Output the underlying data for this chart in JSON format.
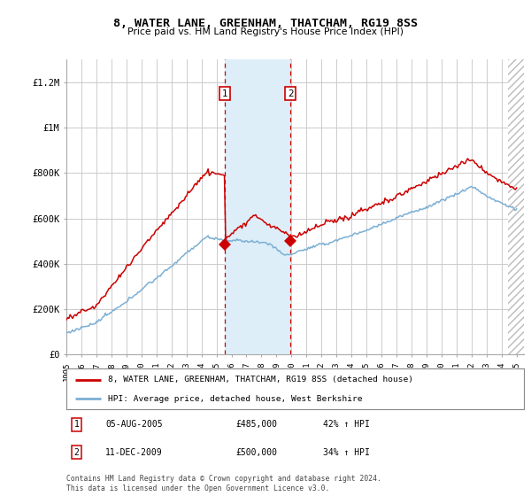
{
  "title": "8, WATER LANE, GREENHAM, THATCHAM, RG19 8SS",
  "subtitle": "Price paid vs. HM Land Registry's House Price Index (HPI)",
  "legend_line1": "8, WATER LANE, GREENHAM, THATCHAM, RG19 8SS (detached house)",
  "legend_line2": "HPI: Average price, detached house, West Berkshire",
  "footnote": "Contains HM Land Registry data © Crown copyright and database right 2024.\nThis data is licensed under the Open Government Licence v3.0.",
  "transaction1": {
    "label": "1",
    "date": "05-AUG-2005",
    "price": "£485,000",
    "hpi": "42% ↑ HPI"
  },
  "transaction2": {
    "label": "2",
    "date": "11-DEC-2009",
    "price": "£500,000",
    "hpi": "34% ↑ HPI"
  },
  "vline1_x": 2005.58,
  "vline2_x": 2009.94,
  "marker1_y": 485000,
  "marker2_y": 500000,
  "ylim": [
    0,
    1300000
  ],
  "xlim_start": 1995.0,
  "xlim_end": 2025.5,
  "yticks": [
    0,
    200000,
    400000,
    600000,
    800000,
    1000000,
    1200000
  ],
  "ytick_labels": [
    "£0",
    "£200K",
    "£400K",
    "£600K",
    "£800K",
    "£1M",
    "£1.2M"
  ],
  "xticks": [
    1995,
    1996,
    1997,
    1998,
    1999,
    2000,
    2001,
    2002,
    2003,
    2004,
    2005,
    2006,
    2007,
    2008,
    2009,
    2010,
    2011,
    2012,
    2013,
    2014,
    2015,
    2016,
    2017,
    2018,
    2019,
    2020,
    2021,
    2022,
    2023,
    2024,
    2025
  ],
  "hpi_color": "#7bafd4",
  "price_color": "#cc0000",
  "span_color": "#ddeef8",
  "bg_color": "#ffffff",
  "grid_color": "#cccccc",
  "hatch_start": 2024.42
}
